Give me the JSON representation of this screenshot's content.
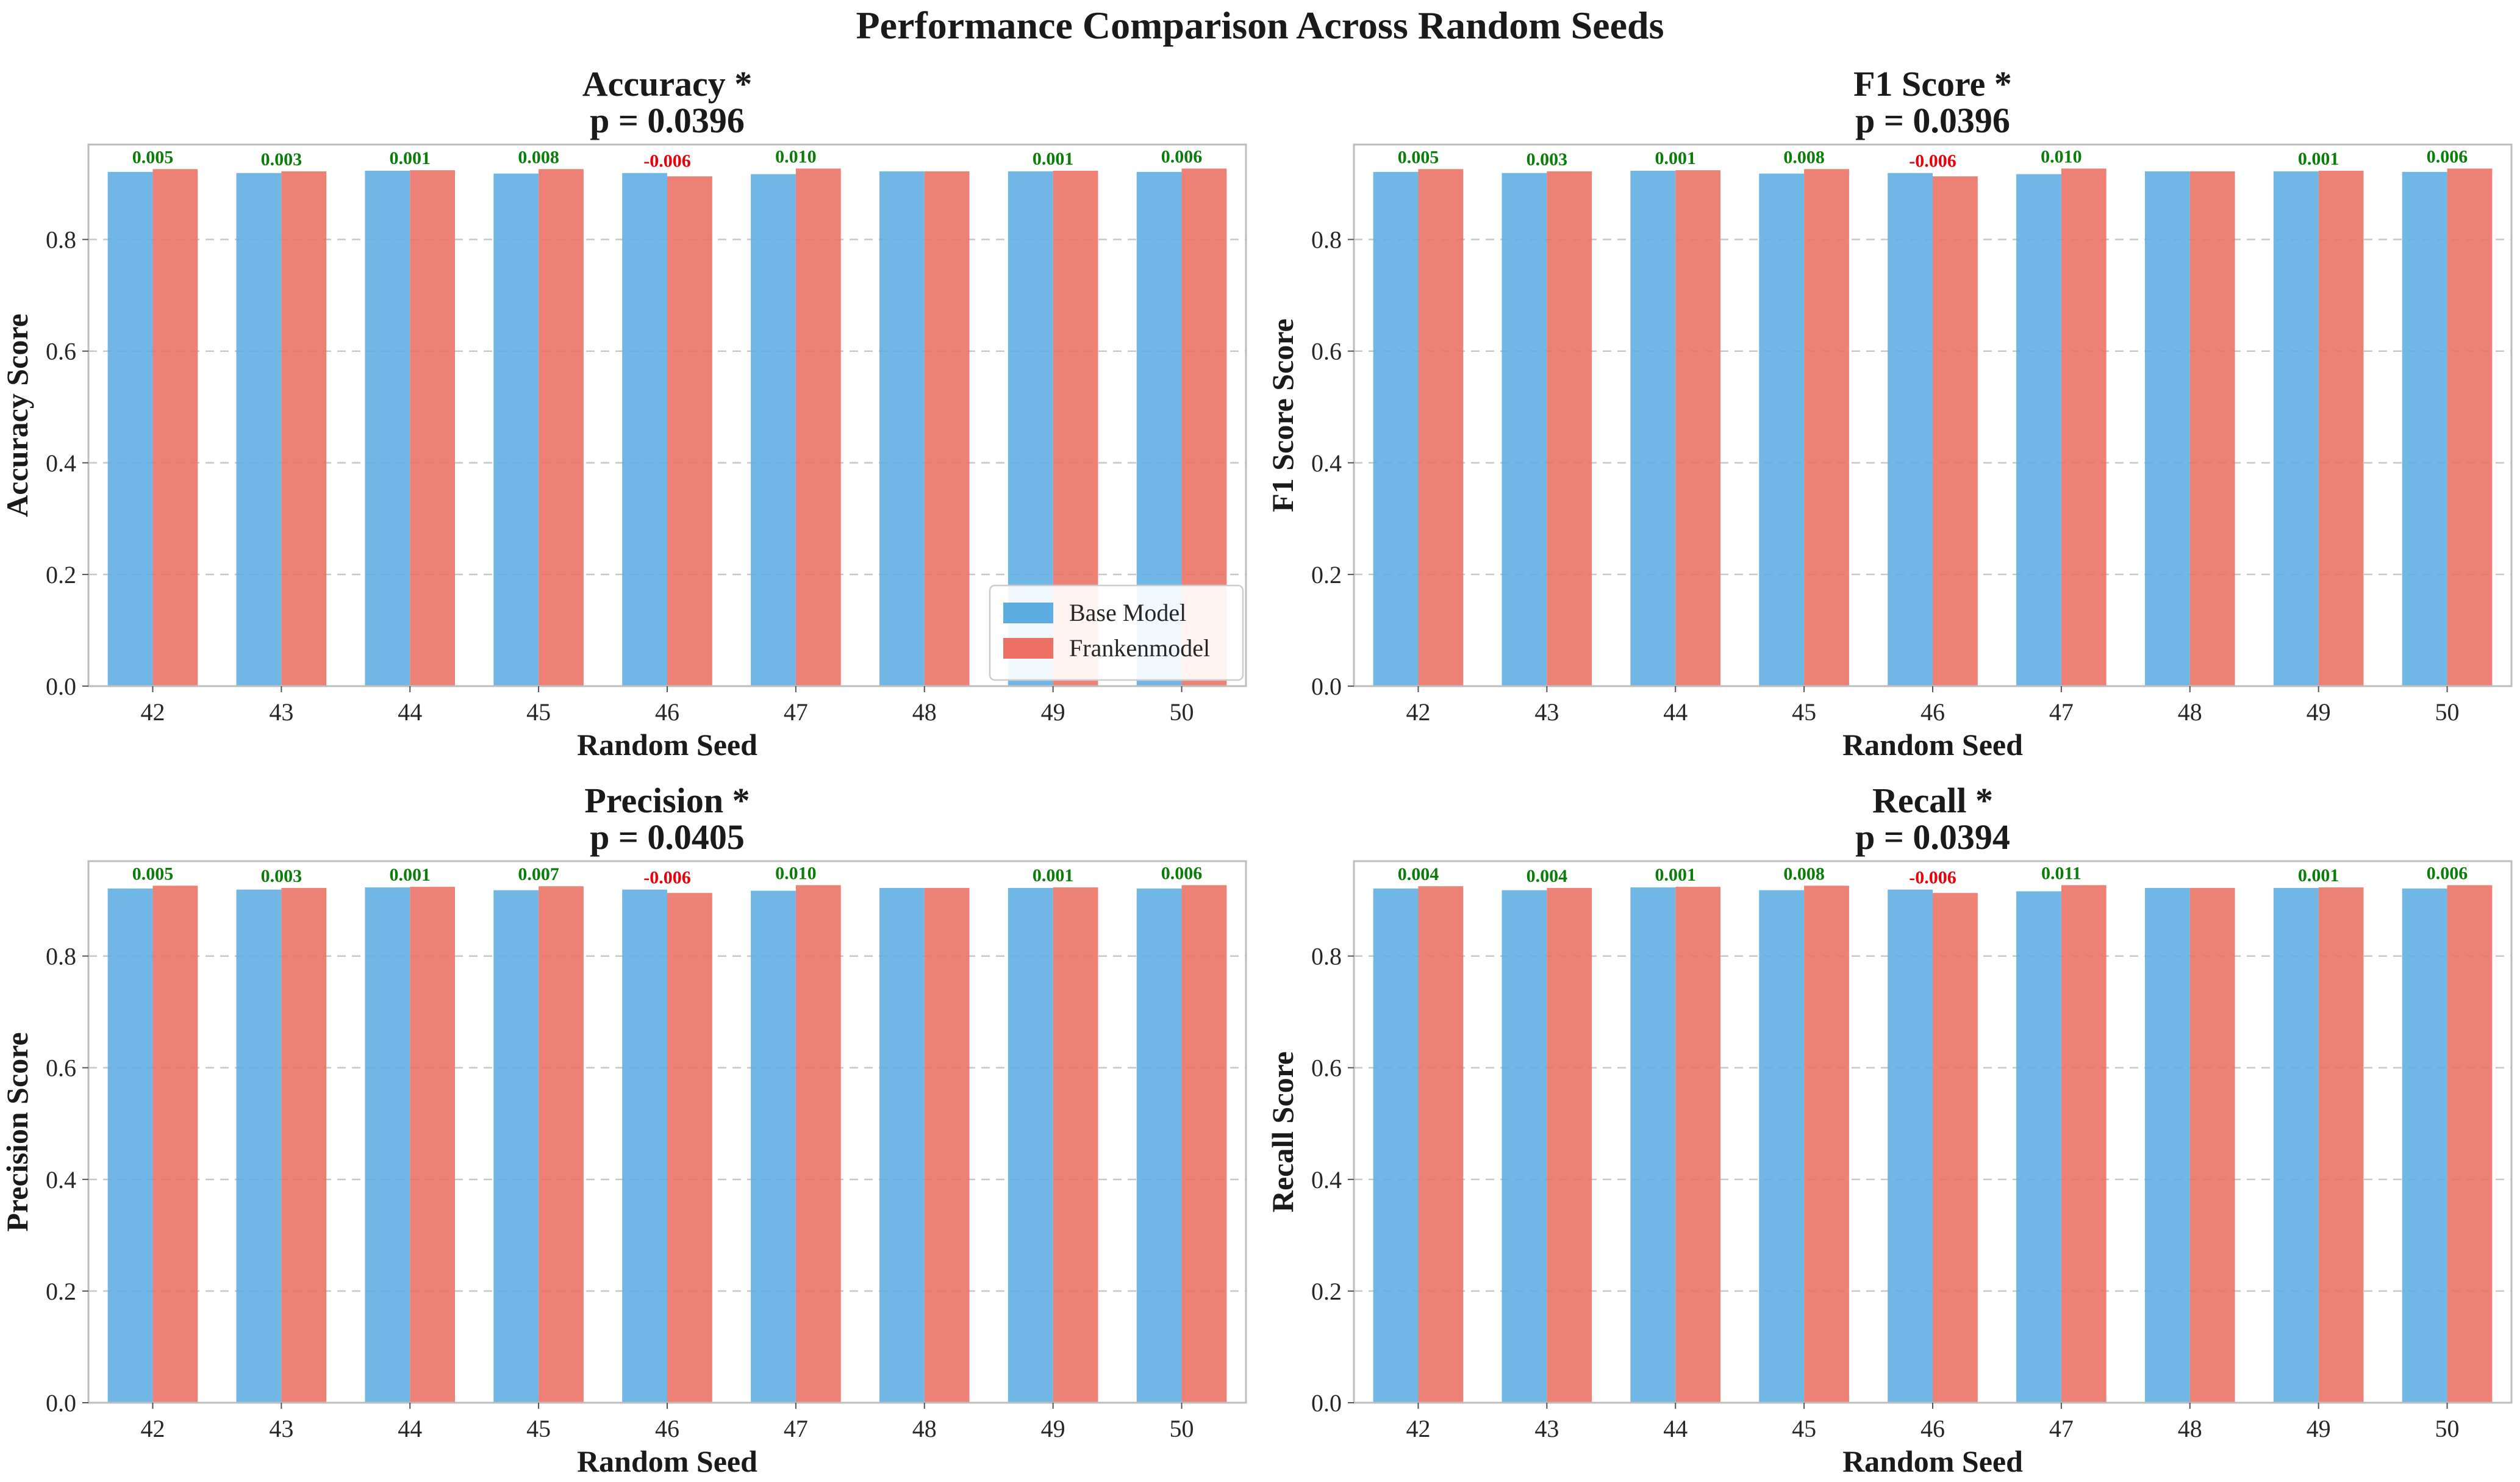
{
  "figure": {
    "suptitle": "Performance Comparison Across Random Seeds"
  },
  "colors": {
    "base": "#5dade2",
    "franken": "#ec7063",
    "positive": "#0b7d0b",
    "negative": "#e8000b"
  },
  "chart_data": [
    {
      "type": "bar",
      "title": "Accuracy *",
      "subtitle": "p = 0.0396",
      "xlabel": "Random Seed",
      "ylabel": "Accuracy Score",
      "ylim": [
        0,
        0.97
      ],
      "yticks": [
        "0.0",
        "0.2",
        "0.4",
        "0.6",
        "0.8"
      ],
      "categories": [
        "42",
        "43",
        "44",
        "45",
        "46",
        "47",
        "48",
        "49",
        "50"
      ],
      "series": [
        {
          "name": "Base Model",
          "values": [
            0.921,
            0.919,
            0.923,
            0.918,
            0.919,
            0.917,
            0.922,
            0.922,
            0.921
          ]
        },
        {
          "name": "Frankenmodel",
          "values": [
            0.926,
            0.922,
            0.924,
            0.926,
            0.913,
            0.927,
            0.922,
            0.923,
            0.927
          ]
        }
      ],
      "deltas": [
        "0.005",
        "0.003",
        "0.001",
        "0.008",
        "-0.006",
        "0.010",
        "",
        "0.001",
        "0.006"
      ],
      "grid": true,
      "legend": "lower-right"
    },
    {
      "type": "bar",
      "title": "F1 Score *",
      "subtitle": "p = 0.0396",
      "xlabel": "Random Seed",
      "ylabel": "F1 Score Score",
      "ylim": [
        0,
        0.97
      ],
      "yticks": [
        "0.0",
        "0.2",
        "0.4",
        "0.6",
        "0.8"
      ],
      "categories": [
        "42",
        "43",
        "44",
        "45",
        "46",
        "47",
        "48",
        "49",
        "50"
      ],
      "series": [
        {
          "name": "Base Model",
          "values": [
            0.921,
            0.919,
            0.923,
            0.918,
            0.919,
            0.917,
            0.922,
            0.922,
            0.921
          ]
        },
        {
          "name": "Frankenmodel",
          "values": [
            0.926,
            0.922,
            0.924,
            0.926,
            0.913,
            0.927,
            0.922,
            0.923,
            0.927
          ]
        }
      ],
      "deltas": [
        "0.005",
        "0.003",
        "0.001",
        "0.008",
        "-0.006",
        "0.010",
        "",
        "0.001",
        "0.006"
      ],
      "grid": true
    },
    {
      "type": "bar",
      "title": "Precision *",
      "subtitle": "p = 0.0405",
      "xlabel": "Random Seed",
      "ylabel": "Precision Score",
      "ylim": [
        0,
        0.97
      ],
      "yticks": [
        "0.0",
        "0.2",
        "0.4",
        "0.6",
        "0.8"
      ],
      "categories": [
        "42",
        "43",
        "44",
        "45",
        "46",
        "47",
        "48",
        "49",
        "50"
      ],
      "series": [
        {
          "name": "Base Model",
          "values": [
            0.921,
            0.919,
            0.923,
            0.918,
            0.919,
            0.917,
            0.922,
            0.922,
            0.921
          ]
        },
        {
          "name": "Frankenmodel",
          "values": [
            0.926,
            0.922,
            0.924,
            0.925,
            0.913,
            0.927,
            0.922,
            0.923,
            0.927
          ]
        }
      ],
      "deltas": [
        "0.005",
        "0.003",
        "0.001",
        "0.007",
        "-0.006",
        "0.010",
        "",
        "0.001",
        "0.006"
      ],
      "grid": true
    },
    {
      "type": "bar",
      "title": "Recall *",
      "subtitle": "p = 0.0394",
      "xlabel": "Random Seed",
      "ylabel": "Recall Score",
      "ylim": [
        0,
        0.97
      ],
      "yticks": [
        "0.0",
        "0.2",
        "0.4",
        "0.6",
        "0.8"
      ],
      "categories": [
        "42",
        "43",
        "44",
        "45",
        "46",
        "47",
        "48",
        "49",
        "50"
      ],
      "series": [
        {
          "name": "Base Model",
          "values": [
            0.921,
            0.918,
            0.923,
            0.918,
            0.919,
            0.916,
            0.922,
            0.922,
            0.921
          ]
        },
        {
          "name": "Frankenmodel",
          "values": [
            0.925,
            0.922,
            0.924,
            0.926,
            0.913,
            0.927,
            0.922,
            0.923,
            0.927
          ]
        }
      ],
      "deltas": [
        "0.004",
        "0.004",
        "0.001",
        "0.008",
        "-0.006",
        "0.011",
        "",
        "0.001",
        "0.006"
      ],
      "grid": true
    }
  ]
}
